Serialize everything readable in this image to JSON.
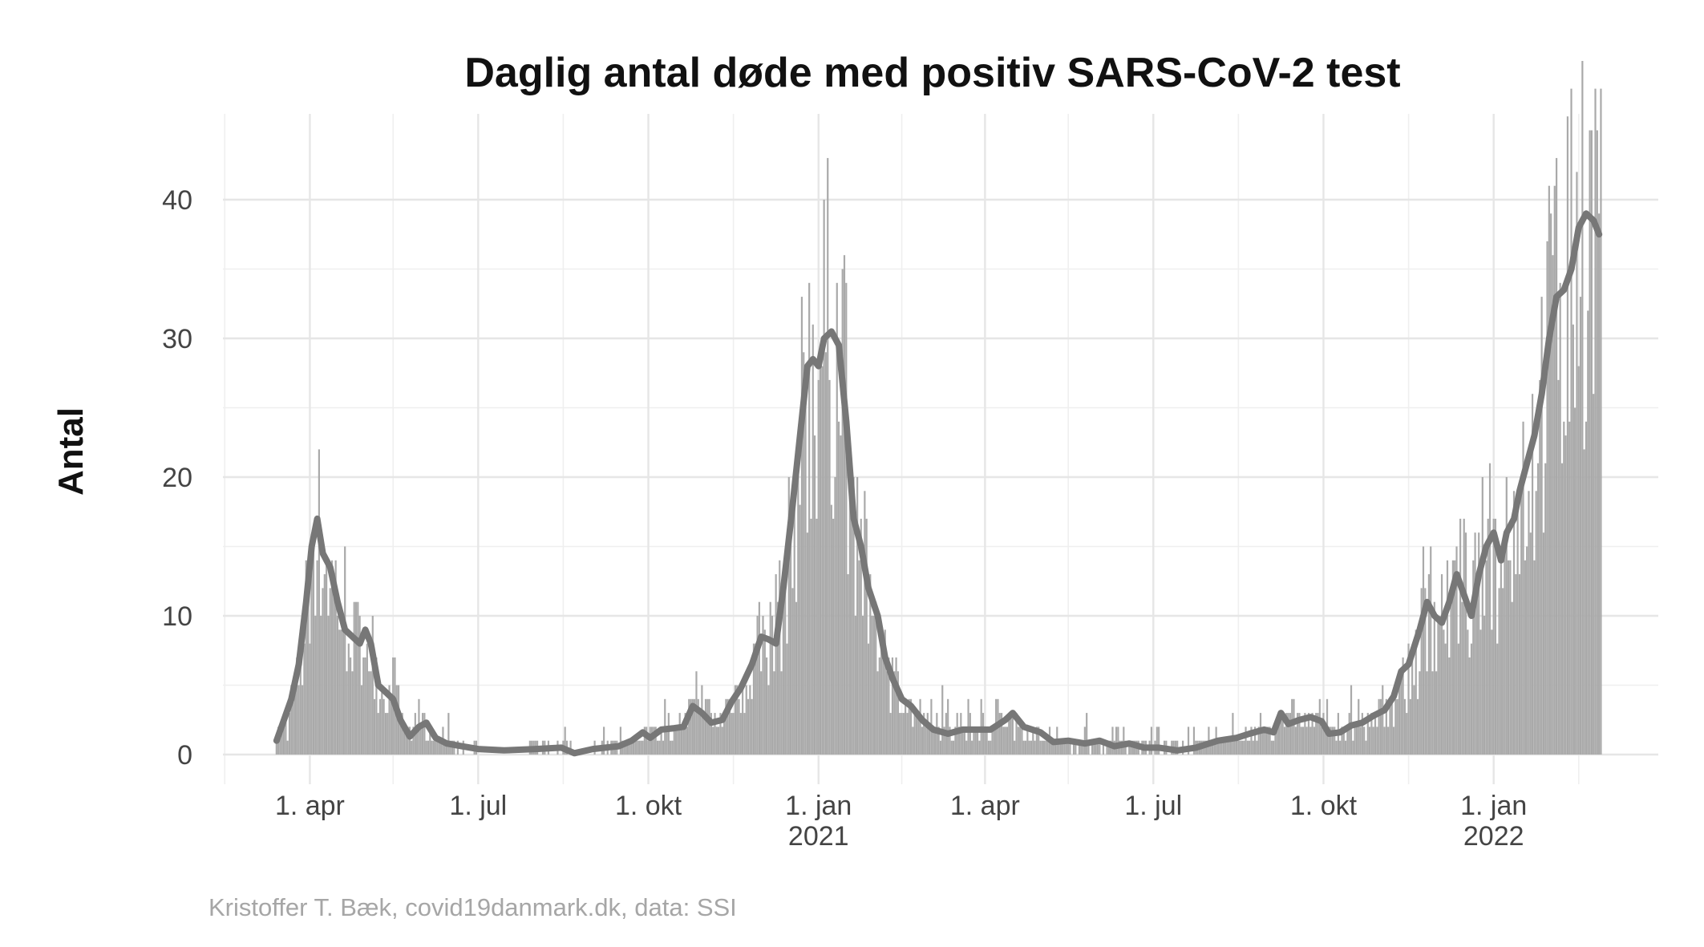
{
  "chart_data": {
    "type": "bar",
    "title": "Daglig antal døde med positiv SARS-CoV-2 test",
    "xlabel": "",
    "ylabel": "Antal",
    "caption": "Kristoffer T. Bæk, covid19danmark.dk, data: SSI",
    "ylim": [
      0,
      45
    ],
    "yticks": [
      0,
      10,
      20,
      30,
      40
    ],
    "xlim": [
      "2020-02-14",
      "2022-03-31"
    ],
    "xticks": [
      {
        "date": "2020-04-01",
        "label": "1. apr",
        "sub": ""
      },
      {
        "date": "2020-07-01",
        "label": "1. jul",
        "sub": ""
      },
      {
        "date": "2020-10-01",
        "label": "1. okt",
        "sub": ""
      },
      {
        "date": "2021-01-01",
        "label": "1. jan",
        "sub": "2021"
      },
      {
        "date": "2021-04-01",
        "label": "1. apr",
        "sub": ""
      },
      {
        "date": "2021-07-01",
        "label": "1. jul",
        "sub": ""
      },
      {
        "date": "2021-10-01",
        "label": "1. okt",
        "sub": ""
      },
      {
        "date": "2022-01-01",
        "label": "1. jan",
        "sub": "2022"
      }
    ],
    "grid": true,
    "legend": "none",
    "colors": {
      "bars": "#a9a9a9",
      "moving_average": "#777777",
      "grid": "#e6e6e6"
    },
    "series": [
      {
        "kind": "bars",
        "note": "daily deaths, piecewise values (date, approx. count)",
        "points": [
          [
            "2020-03-11",
            0
          ],
          [
            "2020-03-14",
            1
          ],
          [
            "2020-03-18",
            2
          ],
          [
            "2020-03-22",
            3
          ],
          [
            "2020-03-26",
            6
          ],
          [
            "2020-03-30",
            10
          ],
          [
            "2020-04-01",
            13
          ],
          [
            "2020-04-04",
            17
          ],
          [
            "2020-04-07",
            15
          ],
          [
            "2020-04-11",
            13
          ],
          [
            "2020-04-15",
            12
          ],
          [
            "2020-04-19",
            10
          ],
          [
            "2020-04-23",
            9
          ],
          [
            "2020-04-27",
            8
          ],
          [
            "2020-05-01",
            9
          ],
          [
            "2020-05-05",
            7
          ],
          [
            "2020-05-10",
            5
          ],
          [
            "2020-05-15",
            4
          ],
          [
            "2020-05-20",
            3
          ],
          [
            "2020-05-25",
            1.5
          ],
          [
            "2020-06-01",
            2.5
          ],
          [
            "2020-06-08",
            1
          ],
          [
            "2020-06-20",
            0.5
          ],
          [
            "2020-07-01",
            0.3
          ],
          [
            "2020-07-20",
            0.3
          ],
          [
            "2020-08-10",
            0.5
          ],
          [
            "2020-08-25",
            0.2
          ],
          [
            "2020-09-10",
            0.5
          ],
          [
            "2020-09-25",
            1
          ],
          [
            "2020-10-01",
            1.2
          ],
          [
            "2020-10-10",
            2
          ],
          [
            "2020-10-20",
            2
          ],
          [
            "2020-10-26",
            3.5
          ],
          [
            "2020-11-01",
            3
          ],
          [
            "2020-11-08",
            2.5
          ],
          [
            "2020-11-15",
            4
          ],
          [
            "2020-11-25",
            6
          ],
          [
            "2020-12-01",
            8.5
          ],
          [
            "2020-12-08",
            8
          ],
          [
            "2020-12-15",
            13
          ],
          [
            "2020-12-20",
            19
          ],
          [
            "2020-12-25",
            27
          ],
          [
            "2020-12-30",
            28
          ],
          [
            "2021-01-05",
            30
          ],
          [
            "2021-01-10",
            30
          ],
          [
            "2021-01-15",
            26
          ],
          [
            "2021-01-20",
            17
          ],
          [
            "2021-01-28",
            12
          ],
          [
            "2021-02-05",
            7
          ],
          [
            "2021-02-12",
            5
          ],
          [
            "2021-02-20",
            3.5
          ],
          [
            "2021-03-01",
            2
          ],
          [
            "2021-03-15",
            2
          ],
          [
            "2021-04-01",
            1.8
          ],
          [
            "2021-04-10",
            2.5
          ],
          [
            "2021-04-20",
            2
          ],
          [
            "2021-05-01",
            1.2
          ],
          [
            "2021-05-15",
            0.8
          ],
          [
            "2021-06-01",
            0.8
          ],
          [
            "2021-06-20",
            0.5
          ],
          [
            "2021-07-01",
            0.5
          ],
          [
            "2021-07-20",
            0.4
          ],
          [
            "2021-08-10",
            1
          ],
          [
            "2021-08-25",
            1.5
          ],
          [
            "2021-09-05",
            2
          ],
          [
            "2021-09-12",
            3
          ],
          [
            "2021-09-20",
            2.5
          ],
          [
            "2021-09-30",
            2.5
          ],
          [
            "2021-10-05",
            1.5
          ],
          [
            "2021-10-15",
            2
          ],
          [
            "2021-10-25",
            2.2
          ],
          [
            "2021-11-01",
            3
          ],
          [
            "2021-11-08",
            4
          ],
          [
            "2021-11-15",
            5.5
          ],
          [
            "2021-11-20",
            7
          ],
          [
            "2021-11-26",
            11
          ],
          [
            "2021-12-01",
            10
          ],
          [
            "2021-12-08",
            10
          ],
          [
            "2021-12-14",
            13
          ],
          [
            "2021-12-20",
            10
          ],
          [
            "2021-12-28",
            15
          ],
          [
            "2022-01-03",
            14
          ],
          [
            "2022-01-08",
            17
          ],
          [
            "2022-01-15",
            19
          ],
          [
            "2022-01-22",
            22
          ],
          [
            "2022-01-28",
            27
          ],
          [
            "2022-02-05",
            33
          ],
          [
            "2022-02-12",
            35
          ],
          [
            "2022-02-18",
            39
          ],
          [
            "2022-02-24",
            38
          ],
          [
            "2022-02-28",
            37
          ]
        ]
      },
      {
        "kind": "line",
        "note": "7-day moving average",
        "points": [
          [
            "2020-03-14",
            1
          ],
          [
            "2020-03-18",
            2.5
          ],
          [
            "2020-03-22",
            4
          ],
          [
            "2020-03-26",
            6.5
          ],
          [
            "2020-03-30",
            11
          ],
          [
            "2020-04-02",
            15
          ],
          [
            "2020-04-05",
            17
          ],
          [
            "2020-04-08",
            14.5
          ],
          [
            "2020-04-12",
            13.5
          ],
          [
            "2020-04-16",
            11
          ],
          [
            "2020-04-20",
            9
          ],
          [
            "2020-04-24",
            8.5
          ],
          [
            "2020-04-28",
            8
          ],
          [
            "2020-05-01",
            9
          ],
          [
            "2020-05-04",
            8
          ],
          [
            "2020-05-08",
            5
          ],
          [
            "2020-05-12",
            4.5
          ],
          [
            "2020-05-16",
            4
          ],
          [
            "2020-05-20",
            2.5
          ],
          [
            "2020-05-25",
            1.3
          ],
          [
            "2020-05-30",
            2
          ],
          [
            "2020-06-03",
            2.3
          ],
          [
            "2020-06-08",
            1.2
          ],
          [
            "2020-06-14",
            0.8
          ],
          [
            "2020-06-22",
            0.6
          ],
          [
            "2020-07-01",
            0.4
          ],
          [
            "2020-07-15",
            0.3
          ],
          [
            "2020-08-01",
            0.4
          ],
          [
            "2020-08-15",
            0.5
          ],
          [
            "2020-08-22",
            0.1
          ],
          [
            "2020-09-01",
            0.4
          ],
          [
            "2020-09-15",
            0.6
          ],
          [
            "2020-09-22",
            1
          ],
          [
            "2020-09-28",
            1.6
          ],
          [
            "2020-10-02",
            1.2
          ],
          [
            "2020-10-08",
            1.8
          ],
          [
            "2020-10-15",
            1.9
          ],
          [
            "2020-10-20",
            2
          ],
          [
            "2020-10-25",
            3.5
          ],
          [
            "2020-10-30",
            3
          ],
          [
            "2020-11-04",
            2.3
          ],
          [
            "2020-11-10",
            2.5
          ],
          [
            "2020-11-15",
            3.8
          ],
          [
            "2020-11-20",
            4.8
          ],
          [
            "2020-11-26",
            6.5
          ],
          [
            "2020-12-01",
            8.5
          ],
          [
            "2020-12-05",
            8.3
          ],
          [
            "2020-12-09",
            8
          ],
          [
            "2020-12-13",
            12
          ],
          [
            "2020-12-18",
            18
          ],
          [
            "2020-12-22",
            23
          ],
          [
            "2020-12-26",
            28
          ],
          [
            "2020-12-29",
            28.5
          ],
          [
            "2021-01-01",
            28
          ],
          [
            "2021-01-04",
            30
          ],
          [
            "2021-01-08",
            30.5
          ],
          [
            "2021-01-12",
            29.5
          ],
          [
            "2021-01-16",
            24
          ],
          [
            "2021-01-20",
            17
          ],
          [
            "2021-01-24",
            15
          ],
          [
            "2021-01-28",
            12
          ],
          [
            "2021-02-02",
            10
          ],
          [
            "2021-02-06",
            7
          ],
          [
            "2021-02-10",
            5.5
          ],
          [
            "2021-02-15",
            4
          ],
          [
            "2021-02-20",
            3.5
          ],
          [
            "2021-02-26",
            2.5
          ],
          [
            "2021-03-04",
            1.8
          ],
          [
            "2021-03-12",
            1.5
          ],
          [
            "2021-03-20",
            1.8
          ],
          [
            "2021-03-28",
            1.8
          ],
          [
            "2021-04-04",
            1.8
          ],
          [
            "2021-04-12",
            2.5
          ],
          [
            "2021-04-16",
            3
          ],
          [
            "2021-04-22",
            2
          ],
          [
            "2021-05-01",
            1.6
          ],
          [
            "2021-05-08",
            0.9
          ],
          [
            "2021-05-16",
            1
          ],
          [
            "2021-05-25",
            0.8
          ],
          [
            "2021-06-02",
            1
          ],
          [
            "2021-06-10",
            0.6
          ],
          [
            "2021-06-18",
            0.8
          ],
          [
            "2021-06-26",
            0.5
          ],
          [
            "2021-07-04",
            0.5
          ],
          [
            "2021-07-14",
            0.3
          ],
          [
            "2021-07-24",
            0.5
          ],
          [
            "2021-08-05",
            1
          ],
          [
            "2021-08-15",
            1.2
          ],
          [
            "2021-08-22",
            1.5
          ],
          [
            "2021-08-30",
            1.8
          ],
          [
            "2021-09-04",
            1.6
          ],
          [
            "2021-09-08",
            3
          ],
          [
            "2021-09-12",
            2.2
          ],
          [
            "2021-09-18",
            2.5
          ],
          [
            "2021-09-24",
            2.7
          ],
          [
            "2021-09-30",
            2.4
          ],
          [
            "2021-10-04",
            1.5
          ],
          [
            "2021-10-10",
            1.6
          ],
          [
            "2021-10-16",
            2.1
          ],
          [
            "2021-10-22",
            2.3
          ],
          [
            "2021-10-28",
            2.8
          ],
          [
            "2021-11-03",
            3.2
          ],
          [
            "2021-11-08",
            4.2
          ],
          [
            "2021-11-12",
            6
          ],
          [
            "2021-11-16",
            6.5
          ],
          [
            "2021-11-22",
            9
          ],
          [
            "2021-11-26",
            11
          ],
          [
            "2021-11-30",
            10
          ],
          [
            "2021-12-04",
            9.5
          ],
          [
            "2021-12-08",
            11
          ],
          [
            "2021-12-12",
            13
          ],
          [
            "2021-12-16",
            11.5
          ],
          [
            "2021-12-20",
            10
          ],
          [
            "2021-12-24",
            13
          ],
          [
            "2021-12-28",
            15
          ],
          [
            "2022-01-01",
            16
          ],
          [
            "2022-01-05",
            14
          ],
          [
            "2022-01-08",
            16
          ],
          [
            "2022-01-12",
            17
          ],
          [
            "2022-01-15",
            19
          ],
          [
            "2022-01-19",
            21
          ],
          [
            "2022-01-23",
            23
          ],
          [
            "2022-01-27",
            26
          ],
          [
            "2022-01-31",
            30
          ],
          [
            "2022-02-04",
            33
          ],
          [
            "2022-02-08",
            33.5
          ],
          [
            "2022-02-12",
            35
          ],
          [
            "2022-02-16",
            38
          ],
          [
            "2022-02-20",
            39
          ],
          [
            "2022-02-24",
            38.5
          ],
          [
            "2022-02-27",
            37.5
          ]
        ]
      }
    ]
  }
}
